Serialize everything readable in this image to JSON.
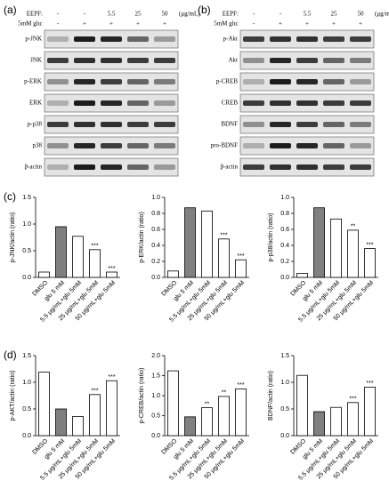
{
  "panel_labels": [
    "(a)",
    "(b)",
    "(c)",
    "(d)"
  ],
  "blots": [
    {
      "header": {
        "eepf_label": "EEPF:",
        "eepf": [
          "-",
          "-",
          "5.5",
          "25",
          "50"
        ],
        "unit": "(μg/mL)",
        "glu_label": "5mM glu:",
        "glu": [
          "-",
          "+",
          "+",
          "+",
          "+"
        ]
      },
      "rows": [
        "p-JNK",
        "JNK",
        "p-ERK",
        "ERK",
        "p-p38",
        "p38",
        "β-actin"
      ]
    },
    {
      "header": {
        "eepf_label": "EEPF:",
        "eepf": [
          "-",
          "-",
          "5.5",
          "25",
          "50"
        ],
        "unit": "(μg/mL)",
        "glu_label": "5mM glu:",
        "glu": [
          "-",
          "+",
          "+",
          "+",
          "+"
        ]
      },
      "rows": [
        "p-Akt",
        "Akt",
        "p-CREB",
        "CREB",
        "BDNF",
        "pro-BDNF",
        "β-actin"
      ]
    }
  ],
  "chart_data": [
    {
      "type": "bar",
      "y_label": "p-JNK/actin (ratio)",
      "categories": [
        "DMSO",
        "glu 5 mM",
        "5.5 μg/mL+glu 5mM",
        "25 μg/mL+glu 5mM",
        "50 μg/mL+glu 5mM"
      ],
      "values": [
        0.1,
        0.95,
        0.77,
        0.52,
        0.1
      ],
      "colors": [
        "#ffffff",
        "#808080",
        "#ffffff",
        "#ffffff",
        "#ffffff"
      ],
      "significance": [
        null,
        null,
        null,
        "***",
        "***"
      ],
      "ylim": [
        0,
        1.5
      ],
      "yticks": [
        {
          "value": 0,
          "label": "0.0"
        },
        0.5,
        {
          "value": 1,
          "label": "1.0"
        },
        1.5
      ]
    },
    {
      "type": "bar",
      "y_label": "p-ERK/actin (ratio)",
      "categories": [
        "DMSO",
        "glu 5 mM",
        "5.5 μg/mL+glu 5mM",
        "25 μg/mL+glu 5mM",
        "50 μg/mL+glu 5mM"
      ],
      "values": [
        0.08,
        0.87,
        0.83,
        0.48,
        0.22
      ],
      "colors": [
        "#ffffff",
        "#808080",
        "#ffffff",
        "#ffffff",
        "#ffffff"
      ],
      "significance": [
        null,
        null,
        null,
        "***",
        "***"
      ],
      "ylim": [
        0,
        1
      ],
      "yticks": [
        {
          "value": 0,
          "label": "0.0"
        },
        0.2,
        0.4,
        0.6,
        0.8,
        {
          "value": 1,
          "label": "1.0"
        }
      ]
    },
    {
      "type": "bar",
      "y_label": "p-p38/actin (ratio)",
      "categories": [
        "DMSO",
        "glu 5 mM",
        "5.5 μg/mL+glu 5mM",
        "25 μg/mL+glu 5mM",
        "50 μg/mL+glu 5mM"
      ],
      "values": [
        0.05,
        0.87,
        0.73,
        0.59,
        0.36
      ],
      "colors": [
        "#ffffff",
        "#808080",
        "#ffffff",
        "#ffffff",
        "#ffffff"
      ],
      "significance": [
        null,
        null,
        null,
        "**",
        "***"
      ],
      "ylim": [
        0,
        1
      ],
      "yticks": [
        {
          "value": 0,
          "label": "0.0"
        },
        0.2,
        0.4,
        0.6,
        0.8,
        {
          "value": 1,
          "label": "1.0"
        }
      ]
    },
    {
      "type": "bar",
      "y_label": "p-AKT/actin (ratio)",
      "categories": [
        "DMSO",
        "glu 5 mM",
        "5.5 μg/mL+glu 5mM",
        "25 μg/mL+glu 5mM",
        "50 μg/mL+glu 5mM"
      ],
      "values": [
        1.19,
        0.5,
        0.36,
        0.77,
        1.03
      ],
      "colors": [
        "#ffffff",
        "#808080",
        "#ffffff",
        "#ffffff",
        "#ffffff"
      ],
      "significance": [
        null,
        null,
        null,
        "***",
        "***"
      ],
      "ylim": [
        0,
        1.5
      ],
      "yticks": [
        {
          "value": 0,
          "label": "0.0"
        },
        0.5,
        {
          "value": 1,
          "label": "1.0"
        },
        1.5
      ]
    },
    {
      "type": "bar",
      "y_label": "p-CREB/actin (ratio)",
      "categories": [
        "DMSO",
        "glu 5 mM",
        "5.5 μg/mL+glu 5mM",
        "25 μg/mL+glu 5mM",
        "50 μg/mL+glu 5mM"
      ],
      "values": [
        1.62,
        0.47,
        0.7,
        0.98,
        1.17
      ],
      "colors": [
        "#ffffff",
        "#808080",
        "#ffffff",
        "#ffffff",
        "#ffffff"
      ],
      "significance": [
        null,
        null,
        "**",
        "**",
        "***"
      ],
      "ylim": [
        0,
        2
      ],
      "yticks": [
        {
          "value": 0,
          "label": "0.0"
        },
        0.5,
        {
          "value": 1,
          "label": "1.0"
        },
        1.5,
        {
          "value": 2,
          "label": "2.0"
        }
      ]
    },
    {
      "type": "bar",
      "y_label": "BDNF/actin (ratio)",
      "categories": [
        "DMSO",
        "glu 5 mM",
        "5.5 μg/mL+glu 5mM",
        "25 μg/mL+glu 5mM",
        "50 μg/mL+glu 5mM"
      ],
      "values": [
        1.13,
        0.45,
        0.53,
        0.62,
        0.91
      ],
      "colors": [
        "#ffffff",
        "#808080",
        "#ffffff",
        "#ffffff",
        "#ffffff"
      ],
      "significance": [
        null,
        null,
        null,
        "***",
        "***"
      ],
      "ylim": [
        0,
        1.5
      ],
      "yticks": [
        {
          "value": 0,
          "label": "0.0"
        },
        0.5,
        {
          "value": 1,
          "label": "1.0"
        },
        1.5
      ]
    }
  ]
}
